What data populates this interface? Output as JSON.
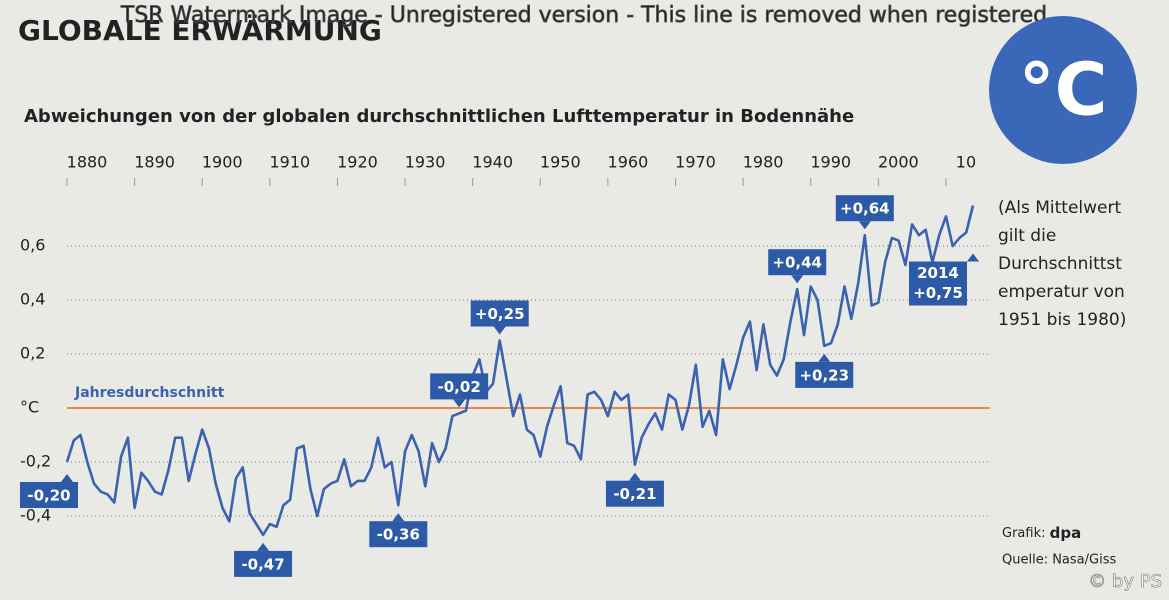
{
  "watermark": "TSR Watermark Image - Unregistered version - This line is removed when registered",
  "copyright": "© by PS",
  "icon_label": "°C",
  "note_lines": [
    "(Als Mittelwert",
    "gilt die",
    "Durchschnittst",
    "emperatur von",
    "1951 bis 1980)"
  ],
  "credit": {
    "graphic_label": "Grafik:",
    "graphic": "dpa",
    "source": "Quelle: Nasa/Giss"
  },
  "chart_data": {
    "type": "line",
    "title": "GLOBALE ERWÄRMUNG",
    "subtitle": "Abweichungen von der globalen durchschnittlichen Lufttemperatur in Bodennähe",
    "reference_label": "Jahresdurchschnitt",
    "color": "#3a62b0",
    "reference_color": "#e8874a",
    "annotation_color": "#2d5aa6",
    "grid": true,
    "x_start": 1880,
    "xlim": [
      1880,
      2014
    ],
    "xticks": [
      1880,
      1890,
      1900,
      1910,
      1920,
      1930,
      1940,
      1950,
      1960,
      1970,
      1980,
      1990,
      2000,
      {
        "value": 2010,
        "label": "10"
      }
    ],
    "ylim": [
      -0.55,
      0.8
    ],
    "yticks": [
      {
        "value": -0.4,
        "label": "-0,4"
      },
      {
        "value": -0.2,
        "label": "-0,2"
      },
      {
        "value": 0,
        "label": "°C"
      },
      {
        "value": 0.2,
        "label": "0,2"
      },
      {
        "value": 0.4,
        "label": "0,4"
      },
      {
        "value": 0.6,
        "label": "0,6"
      }
    ],
    "values": [
      -0.2,
      -0.12,
      -0.1,
      -0.2,
      -0.28,
      -0.31,
      -0.32,
      -0.35,
      -0.18,
      -0.11,
      -0.37,
      -0.24,
      -0.27,
      -0.31,
      -0.32,
      -0.23,
      -0.11,
      -0.11,
      -0.27,
      -0.17,
      -0.08,
      -0.15,
      -0.28,
      -0.37,
      -0.42,
      -0.26,
      -0.22,
      -0.39,
      -0.43,
      -0.47,
      -0.43,
      -0.44,
      -0.36,
      -0.34,
      -0.15,
      -0.14,
      -0.3,
      -0.4,
      -0.3,
      -0.28,
      -0.27,
      -0.19,
      -0.29,
      -0.27,
      -0.27,
      -0.22,
      -0.11,
      -0.22,
      -0.2,
      -0.36,
      -0.16,
      -0.1,
      -0.16,
      -0.29,
      -0.13,
      -0.2,
      -0.15,
      -0.03,
      -0.02,
      -0.01,
      0.12,
      0.18,
      0.06,
      0.09,
      0.25,
      0.11,
      -0.03,
      0.05,
      -0.08,
      -0.1,
      -0.18,
      -0.07,
      0.01,
      0.08,
      -0.13,
      -0.14,
      -0.19,
      0.05,
      0.06,
      0.03,
      -0.03,
      0.06,
      0.03,
      0.05,
      -0.21,
      -0.11,
      -0.06,
      -0.02,
      -0.08,
      0.05,
      0.03,
      -0.08,
      0.01,
      0.16,
      -0.07,
      -0.01,
      -0.1,
      0.18,
      0.07,
      0.16,
      0.26,
      0.32,
      0.14,
      0.31,
      0.16,
      0.12,
      0.18,
      0.32,
      0.44,
      0.27,
      0.45,
      0.4,
      0.23,
      0.24,
      0.31,
      0.45,
      0.33,
      0.46,
      0.64,
      0.38,
      0.39,
      0.54,
      0.63,
      0.62,
      0.53,
      0.68,
      0.64,
      0.66,
      0.54,
      0.64,
      0.71,
      0.6,
      0.63,
      0.65,
      0.75
    ],
    "annotations": [
      {
        "x": 1880,
        "value": -0.2,
        "label": "-0,20"
      },
      {
        "x": 1909,
        "value": -0.47,
        "label": "-0,47"
      },
      {
        "x": 1929,
        "value": -0.36,
        "label": "-0,36"
      },
      {
        "x": 1938,
        "value": -0.02,
        "label": "-0,02"
      },
      {
        "x": 1944,
        "value": 0.25,
        "label": "+0,25"
      },
      {
        "x": 1964,
        "value": -0.21,
        "label": "-0,21"
      },
      {
        "x": 1988,
        "value": 0.44,
        "label": "+0,44"
      },
      {
        "x": 1992,
        "value": 0.23,
        "label": "+0,23"
      },
      {
        "x": 1998,
        "value": 0.64,
        "label": "+0,64"
      },
      {
        "x": 2014,
        "value": 0.75,
        "label": "+0,75",
        "year_label": "2014"
      }
    ]
  }
}
